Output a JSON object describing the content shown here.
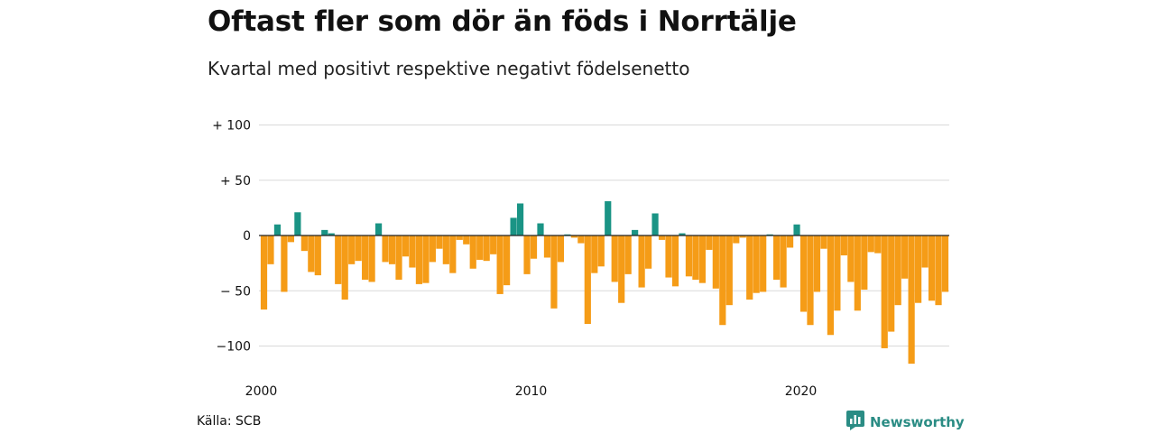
{
  "header": {
    "title": "Oftast fler som dör än föds i Norrtälje",
    "subtitle": "Kvartal med positivt respektive negativt födelsenetto"
  },
  "footer": {
    "source": "Källa: SCB",
    "brand": "Newsworthy"
  },
  "colors": {
    "positive": "#1a9485",
    "negative": "#f59c17",
    "grid": "#d9d9d9",
    "zero_line": "#222222",
    "brand": "#2a8c84"
  },
  "icons": {
    "logo": "bar-chart-speech-bubble-icon"
  },
  "chart_data": {
    "type": "bar",
    "title": "Oftast fler som dör än föds i Norrtälje",
    "subtitle": "Kvartal med positivt respektive negativt födelsenetto",
    "xlabel": "",
    "ylabel": "",
    "ylim": [
      -115,
      100
    ],
    "y_ticks": [
      {
        "value": 100,
        "label": "+ 100"
      },
      {
        "value": 50,
        "label": "+  50"
      },
      {
        "value": 0,
        "label": "0"
      },
      {
        "value": -50,
        "label": "− 50"
      },
      {
        "value": -100,
        "label": "−100"
      }
    ],
    "x_ticks": [
      {
        "value": "2000",
        "label": "2000"
      },
      {
        "value": "2010",
        "label": "2010"
      },
      {
        "value": "2020",
        "label": "2020"
      }
    ],
    "grid": true,
    "legend": "none",
    "x_start": "2000 Q1",
    "frequency": "quarterly",
    "values": [
      -67,
      -26,
      10,
      -51,
      -6,
      21,
      -14,
      -33,
      -36,
      5,
      2,
      -44,
      -58,
      -26,
      -23,
      -40,
      -42,
      11,
      -24,
      -26,
      -40,
      -19,
      -29,
      -44,
      -43,
      -24,
      -12,
      -26,
      -34,
      -4,
      -8,
      -30,
      -22,
      -23,
      -17,
      -53,
      -45,
      16,
      29,
      -35,
      -21,
      11,
      -20,
      -66,
      -24,
      1,
      -2,
      -7,
      -80,
      -34,
      -28,
      31,
      -42,
      -61,
      -35,
      5,
      -47,
      -30,
      20,
      -4,
      -38,
      -46,
      2,
      -37,
      -40,
      -43,
      -13,
      -48,
      -81,
      -63,
      -7,
      -2,
      -58,
      -52,
      -51,
      1,
      -40,
      -47,
      -11,
      10,
      -69,
      -81,
      -51,
      -12,
      -90,
      -68,
      -18,
      -42,
      -68,
      -49,
      -15,
      -16,
      -102,
      -87,
      -63,
      -39,
      -116,
      -61,
      -29,
      -59,
      -63,
      -51
    ]
  }
}
